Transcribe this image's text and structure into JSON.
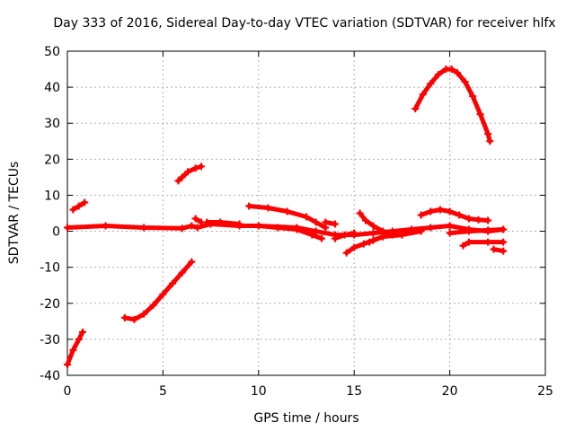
{
  "chart_data": {
    "type": "scatter",
    "title": "Day 333 of 2016, Sidereal Day-to-day VTEC variation (SDTVAR) for receiver hlfx",
    "xlabel": "GPS time / hours",
    "ylabel": "SDTVAR / TECUs",
    "xlim": [
      0,
      25
    ],
    "ylim": [
      -40,
      50
    ],
    "xticks": [
      0,
      5,
      10,
      15,
      20,
      25
    ],
    "yticks": [
      -40,
      -30,
      -20,
      -10,
      0,
      10,
      20,
      30,
      40,
      50
    ],
    "xtick_labels": [
      "0",
      "5",
      "10",
      "15",
      "20",
      "25"
    ],
    "ytick_labels": [
      "-40",
      "-30",
      "-20",
      "-10",
      "0",
      "10",
      "20",
      "30",
      "40",
      "50"
    ],
    "grid": true,
    "legend": "none",
    "marker": "plus",
    "color": "#ff0000",
    "series": [
      {
        "x": [
          0.0,
          0.3,
          0.6,
          0.8
        ],
        "y": [
          -37,
          -33,
          -30,
          -28
        ]
      },
      {
        "x": [
          0.3,
          0.6,
          0.9
        ],
        "y": [
          6,
          7,
          8
        ]
      },
      {
        "x": [
          0.0,
          2.0,
          4.0,
          6.0,
          6.5,
          6.8,
          7.5,
          9.0,
          10.0,
          12.0,
          13.0,
          14.0,
          15.0,
          16.0,
          17.0,
          18.0,
          19.0,
          20.0,
          21.0,
          22.0,
          22.8
        ],
        "y": [
          1,
          1.5,
          1,
          0.8,
          1.5,
          1,
          2,
          1.5,
          1.5,
          1,
          0,
          -1,
          -1,
          -0.5,
          0,
          0.5,
          1,
          1.5,
          0.5,
          0,
          0.5
        ]
      },
      {
        "x": [
          6.7,
          7.0
        ],
        "y": [
          3.5,
          2.5
        ]
      },
      {
        "x": [
          7.3,
          8.0,
          9.0
        ],
        "y": [
          2.5,
          2.5,
          2
        ]
      },
      {
        "x": [
          3.0,
          3.5,
          4.0,
          4.5,
          5.0,
          5.5,
          6.0,
          6.5
        ],
        "y": [
          -24,
          -24.5,
          -23,
          -20.5,
          -17.5,
          -14.5,
          -11.5,
          -8.5
        ]
      },
      {
        "x": [
          5.8,
          6.0,
          6.3,
          6.7,
          7.0
        ],
        "y": [
          14,
          15,
          16.5,
          17.5,
          18
        ]
      },
      {
        "x": [
          9.5,
          10.5,
          11.5,
          12.5,
          13.0,
          13.5
        ],
        "y": [
          7,
          6.5,
          5.5,
          4,
          2.5,
          1
        ]
      },
      {
        "x": [
          10.0,
          11.0,
          12.0,
          12.8,
          13.3
        ],
        "y": [
          1.5,
          1,
          0.5,
          -1,
          -2
        ]
      },
      {
        "x": [
          13.5,
          14.0
        ],
        "y": [
          2.5,
          2
        ]
      },
      {
        "x": [
          14.0,
          14.5,
          15.0
        ],
        "y": [
          -2,
          -1,
          -0.5
        ]
      },
      {
        "x": [
          14.6,
          15.0,
          15.5,
          16.0,
          16.5,
          17.0
        ],
        "y": [
          -6,
          -4.5,
          -3.5,
          -2.5,
          -1.5,
          -1
        ]
      },
      {
        "x": [
          15.3,
          15.6,
          16.0,
          16.5,
          17.0
        ],
        "y": [
          5,
          3,
          1.5,
          0,
          -0.5
        ]
      },
      {
        "x": [
          15.8,
          16.5,
          17.5,
          18.5
        ],
        "y": [
          -3,
          -1.5,
          -1,
          0
        ]
      },
      {
        "x": [
          18.5,
          19.0,
          19.5,
          20.0,
          20.5,
          21.0,
          21.5,
          22.0
        ],
        "y": [
          4.5,
          5.5,
          6,
          5.5,
          4.5,
          3.5,
          3.2,
          3
        ]
      },
      {
        "x": [
          20.0,
          21.0,
          22.0,
          22.8
        ],
        "y": [
          -0.5,
          0,
          0.3,
          0.5
        ]
      },
      {
        "x": [
          20.7,
          21.0,
          22.0,
          22.8
        ],
        "y": [
          -4,
          -3,
          -3,
          -3
        ]
      },
      {
        "x": [
          22.3,
          22.8
        ],
        "y": [
          -5,
          -5.5
        ]
      },
      {
        "x": [
          18.2,
          18.6,
          19.0,
          19.4,
          19.8,
          20.1,
          20.4,
          20.8,
          21.2,
          21.6,
          22.0,
          22.1
        ],
        "y": [
          34,
          38,
          41,
          43.5,
          45,
          45,
          44,
          41.5,
          37.5,
          32.5,
          27,
          25
        ]
      }
    ]
  }
}
